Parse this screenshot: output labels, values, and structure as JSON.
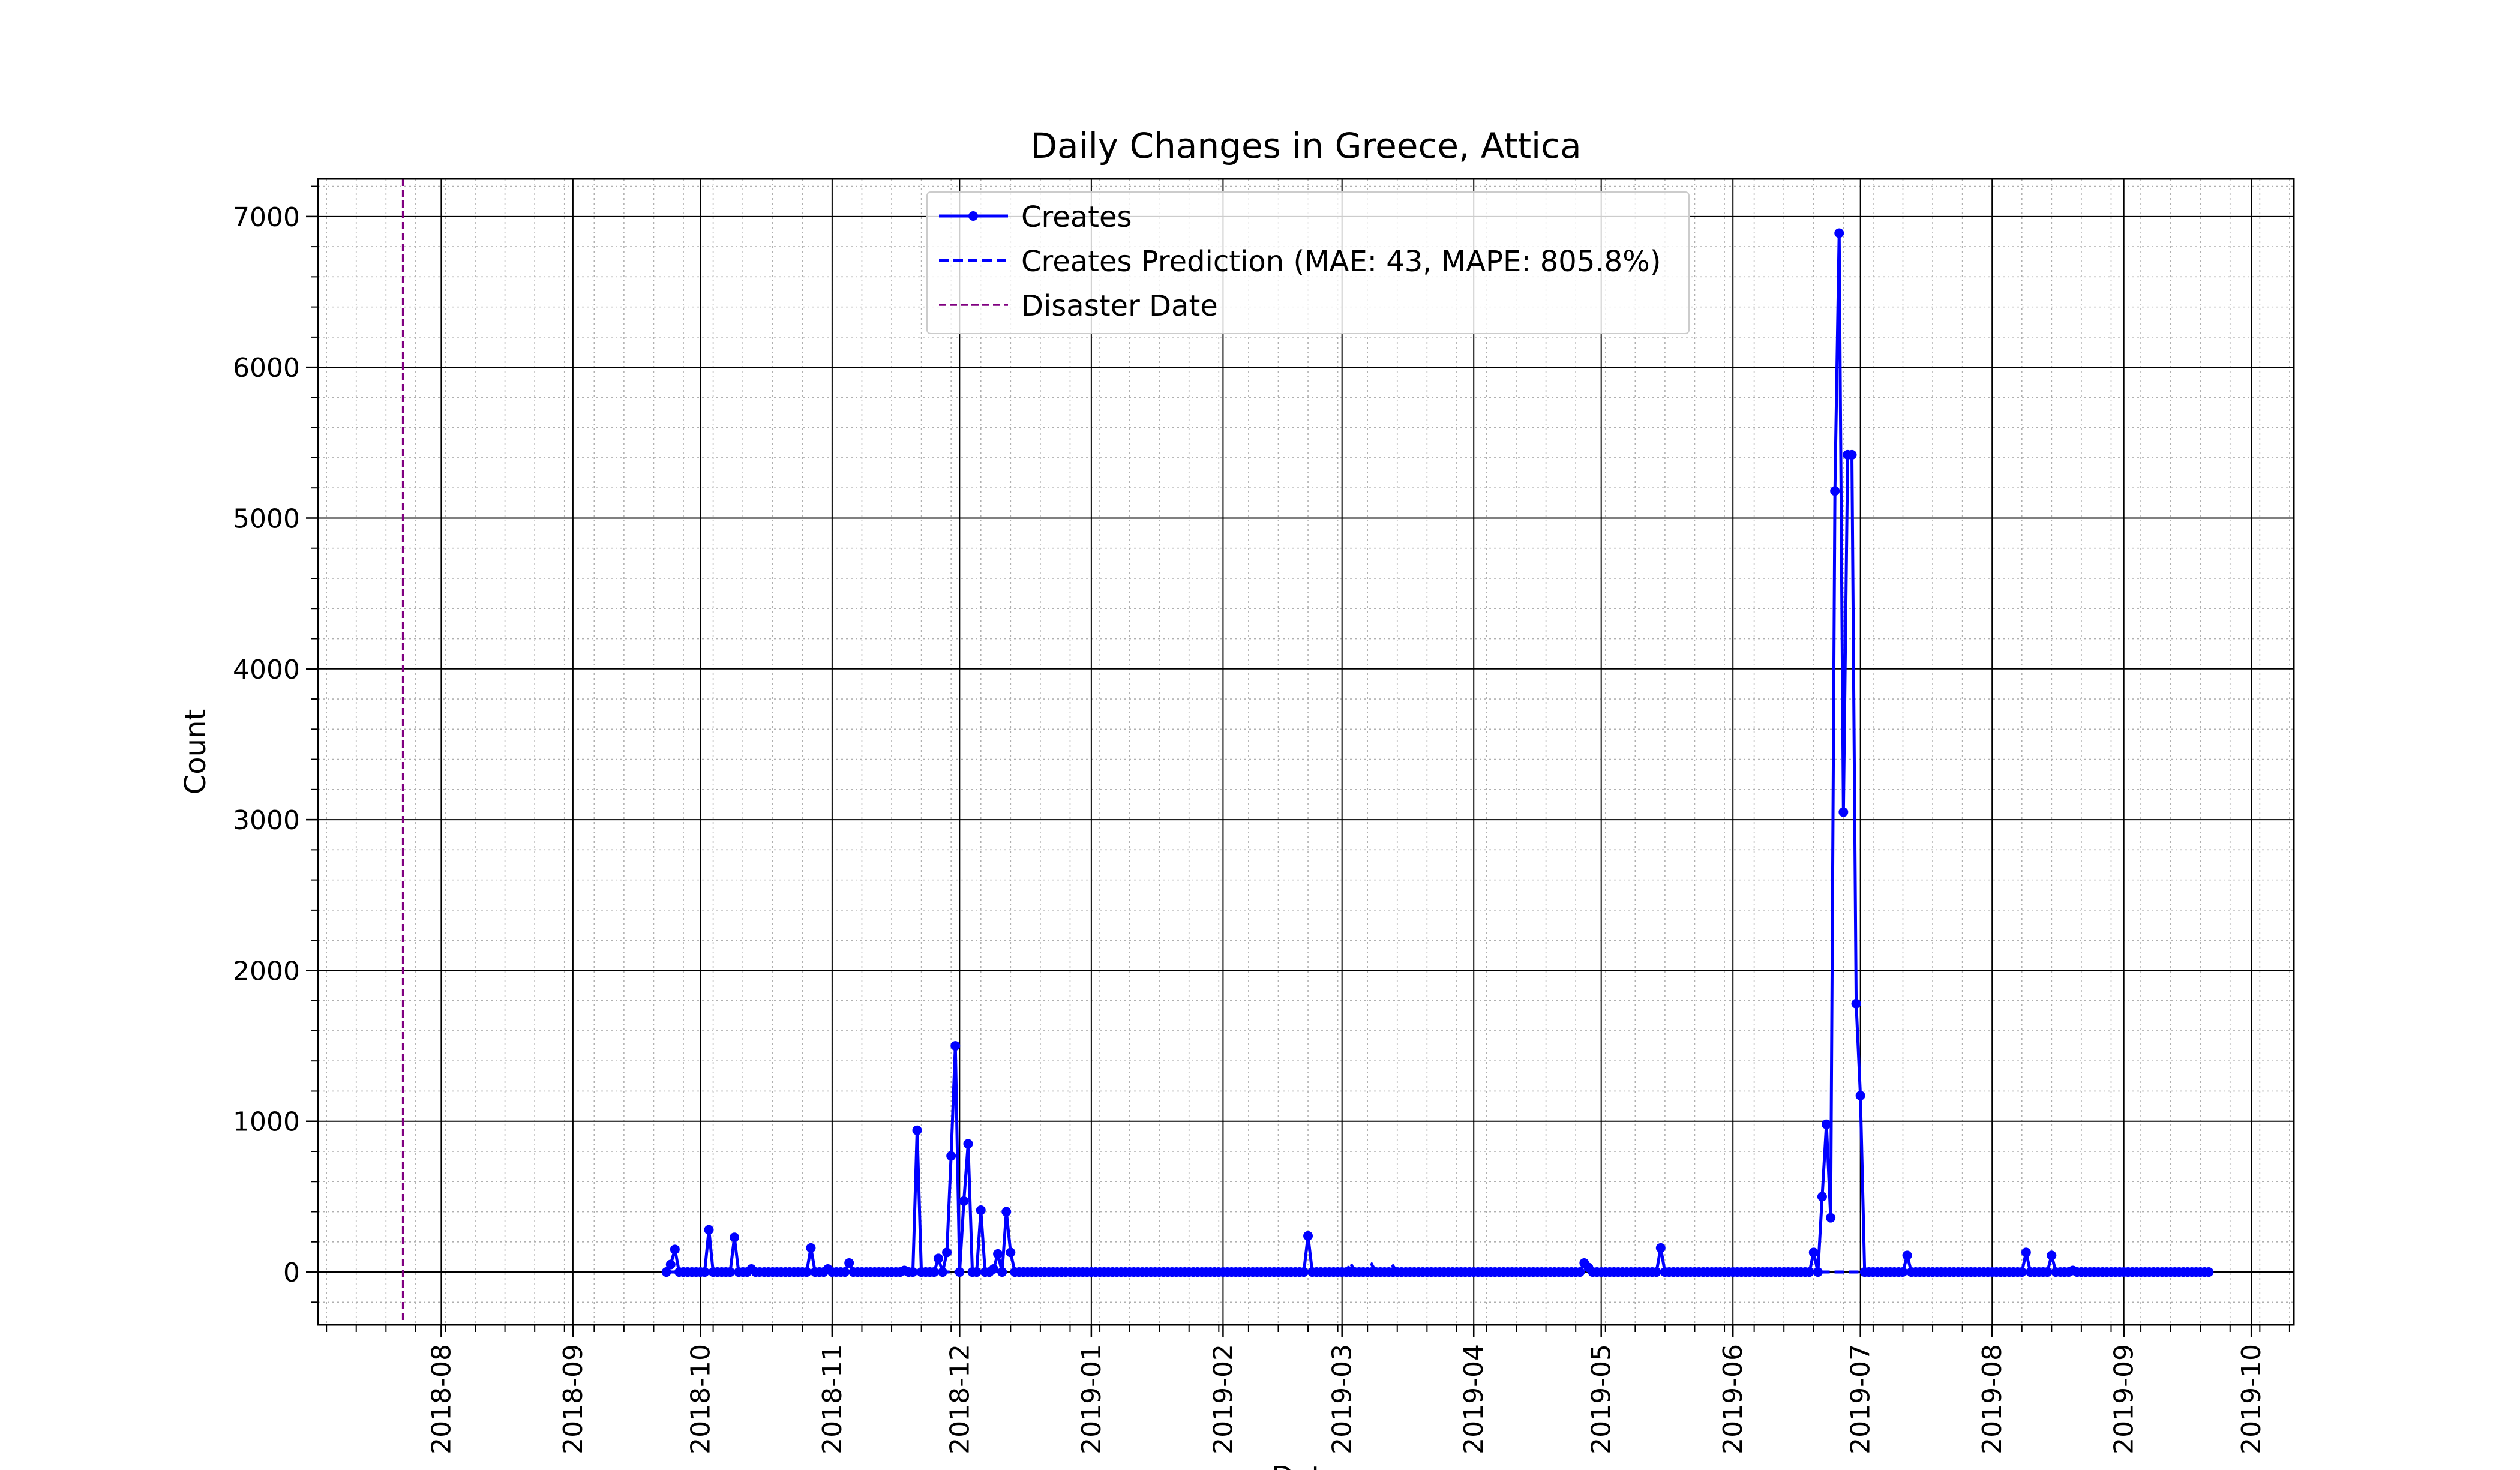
{
  "chart_data": {
    "type": "line",
    "title": "Daily Changes in Greece, Attica",
    "xlabel": "Date",
    "ylabel": "Count",
    "x_range": [
      "2018-07-03",
      "2019-10-11"
    ],
    "ylim": [
      -350,
      7250
    ],
    "y_ticks": [
      0,
      1000,
      2000,
      3000,
      4000,
      5000,
      6000,
      7000
    ],
    "x_ticks": [
      "2018-08",
      "2018-09",
      "2018-10",
      "2018-11",
      "2018-12",
      "2019-01",
      "2019-02",
      "2019-03",
      "2019-04",
      "2019-05",
      "2019-06",
      "2019-07",
      "2019-08",
      "2019-09",
      "2019-10"
    ],
    "grid": {
      "major": true,
      "minor": true
    },
    "legend_position": "upper center",
    "disaster_date": "2018-07-23",
    "series": [
      {
        "name": "Creates",
        "style": "solid line with circle markers",
        "color": "#0000ff",
        "range": [
          "2018-09-23",
          "2019-09-21"
        ],
        "baseline": 0,
        "points": [
          [
            "2018-09-24",
            50
          ],
          [
            "2018-09-25",
            150
          ],
          [
            "2018-10-03",
            280
          ],
          [
            "2018-10-09",
            230
          ],
          [
            "2018-10-13",
            20
          ],
          [
            "2018-10-27",
            160
          ],
          [
            "2018-10-31",
            20
          ],
          [
            "2018-11-05",
            60
          ],
          [
            "2018-11-18",
            10
          ],
          [
            "2018-11-21",
            940
          ],
          [
            "2018-11-26",
            90
          ],
          [
            "2018-11-28",
            130
          ],
          [
            "2018-11-29",
            770
          ],
          [
            "2018-11-30",
            1500
          ],
          [
            "2018-12-02",
            470
          ],
          [
            "2018-12-03",
            850
          ],
          [
            "2018-12-06",
            410
          ],
          [
            "2018-12-09",
            20
          ],
          [
            "2018-12-10",
            120
          ],
          [
            "2018-12-12",
            400
          ],
          [
            "2018-12-13",
            130
          ],
          [
            "2019-02-21",
            240
          ],
          [
            "2019-04-27",
            60
          ],
          [
            "2019-04-28",
            30
          ],
          [
            "2019-05-15",
            160
          ],
          [
            "2019-06-20",
            130
          ],
          [
            "2019-06-22",
            500
          ],
          [
            "2019-06-23",
            980
          ],
          [
            "2019-06-24",
            360
          ],
          [
            "2019-06-25",
            5180
          ],
          [
            "2019-06-26",
            6890
          ],
          [
            "2019-06-27",
            3050
          ],
          [
            "2019-06-28",
            5420
          ],
          [
            "2019-06-29",
            5420
          ],
          [
            "2019-06-30",
            1780
          ],
          [
            "2019-07-01",
            1170
          ],
          [
            "2019-07-12",
            110
          ],
          [
            "2019-08-09",
            130
          ],
          [
            "2019-08-15",
            110
          ],
          [
            "2019-08-20",
            10
          ]
        ]
      },
      {
        "name": "Creates Prediction (MAE: 43, MAPE: 805.8%)",
        "style": "dashed line",
        "color": "#0000ff",
        "range": [
          "2018-09-23",
          "2019-09-21"
        ],
        "baseline": 0,
        "points": [
          [
            "2019-03-03",
            60
          ],
          [
            "2019-03-08",
            50
          ],
          [
            "2019-03-13",
            40
          ],
          [
            "2019-03-17",
            10
          ]
        ]
      },
      {
        "name": "Disaster Date",
        "style": "dashed vertical line",
        "color": "#800080"
      }
    ]
  }
}
